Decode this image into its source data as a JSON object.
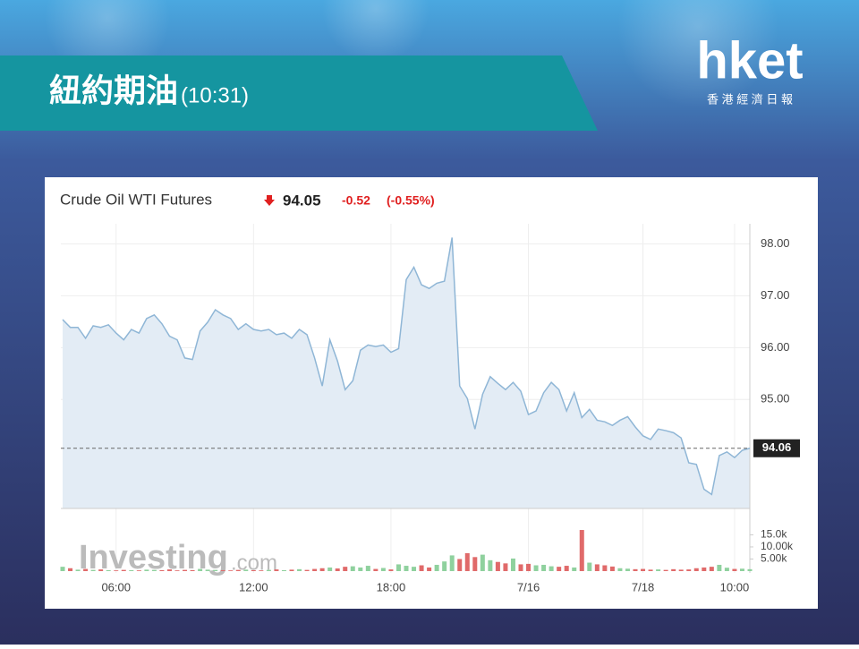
{
  "header": {
    "title": "紐約期油",
    "time": "(10:31)",
    "brand": "hket",
    "brand_sub": "香 港 經 濟 日 報"
  },
  "chart_data": [
    {
      "type": "line",
      "title": "Crude Oil WTI Futures",
      "last_price": 94.05,
      "change": -0.52,
      "change_pct": "(-0.55%)",
      "color": "#8fb6d6",
      "fill": "#e3ecf5",
      "categories": [
        null,
        null,
        null,
        null,
        null,
        null,
        null,
        "06:00",
        null,
        null,
        null,
        null,
        null,
        null,
        null,
        null,
        null,
        null,
        null,
        null,
        null,
        null,
        null,
        null,
        null,
        "12:00",
        null,
        null,
        null,
        null,
        null,
        null,
        null,
        null,
        null,
        null,
        null,
        null,
        null,
        null,
        null,
        null,
        null,
        "18:00",
        null,
        null,
        null,
        null,
        null,
        null,
        null,
        null,
        null,
        null,
        null,
        null,
        null,
        null,
        null,
        null,
        null,
        "7/16",
        null,
        null,
        null,
        null,
        null,
        null,
        null,
        null,
        null,
        null,
        null,
        null,
        null,
        null,
        "7/18",
        null,
        null,
        null,
        null,
        null,
        null,
        null,
        null,
        null,
        null,
        null,
        "10:00",
        null,
        null
      ],
      "values": [
        96.54,
        96.39,
        96.39,
        96.18,
        96.42,
        96.39,
        96.44,
        96.28,
        96.15,
        96.35,
        96.28,
        96.56,
        96.63,
        96.46,
        96.22,
        96.15,
        95.8,
        95.77,
        96.32,
        96.49,
        96.73,
        96.63,
        96.56,
        96.35,
        96.46,
        96.35,
        96.32,
        96.35,
        96.25,
        96.28,
        96.18,
        96.35,
        96.25,
        95.8,
        95.26,
        96.15,
        95.74,
        95.19,
        95.36,
        95.95,
        96.05,
        96.02,
        96.05,
        95.91,
        95.98,
        97.31,
        97.55,
        97.21,
        97.14,
        97.24,
        97.28,
        98.12,
        95.26,
        95.02,
        94.43,
        95.1,
        95.44,
        95.31,
        95.19,
        95.33,
        95.16,
        94.71,
        94.78,
        95.13,
        95.33,
        95.19,
        94.78,
        95.13,
        94.65,
        94.81,
        94.6,
        94.57,
        94.5,
        94.6,
        94.67,
        94.47,
        94.3,
        94.23,
        94.43,
        94.4,
        94.36,
        94.26,
        93.78,
        93.75,
        93.27,
        93.17,
        93.92,
        93.99,
        93.88,
        94.02,
        94.06
      ],
      "last_value": 94.06,
      "ylim": [
        92.9,
        98.3
      ],
      "yticks": [
        {
          "value": 95,
          "label": "95.00"
        },
        {
          "value": 96,
          "label": "96.00"
        },
        {
          "value": 97,
          "label": "97.00"
        },
        {
          "value": 98,
          "label": "98.00"
        }
      ],
      "grid": true,
      "watermark": "Investing",
      "watermark_suffix": ".com"
    },
    {
      "type": "bar",
      "up_color": "#8fd19e",
      "down_color": "#e06a6a",
      "values": [
        1800,
        1200,
        600,
        900,
        500,
        700,
        400,
        300,
        500,
        400,
        300,
        600,
        500,
        400,
        700,
        300,
        500,
        400,
        900,
        600,
        500,
        400,
        300,
        500,
        600,
        400,
        300,
        500,
        700,
        400,
        600,
        800,
        500,
        900,
        1200,
        1500,
        1100,
        1800,
        2000,
        1500,
        2200,
        900,
        1300,
        700,
        2800,
        2200,
        1800,
        2400,
        1500,
        2600,
        4000,
        6500,
        5000,
        7400,
        5800,
        6800,
        4500,
        3800,
        3200,
        5200,
        2800,
        3000,
        2400,
        2600,
        2000,
        1800,
        2200,
        1500,
        17000,
        3500,
        2800,
        2400,
        1900,
        1200,
        1000,
        800,
        900,
        600,
        700,
        500,
        800,
        600,
        700,
        1200,
        1500,
        1800,
        2600,
        1400,
        900,
        1000,
        800
      ],
      "ylim": [
        0,
        19600
      ],
      "yticks": [
        {
          "value": 5000,
          "label": "5.00k"
        },
        {
          "value": 10000,
          "label": "10.00k"
        },
        {
          "value": 15000,
          "label": "15.0k"
        }
      ]
    }
  ]
}
